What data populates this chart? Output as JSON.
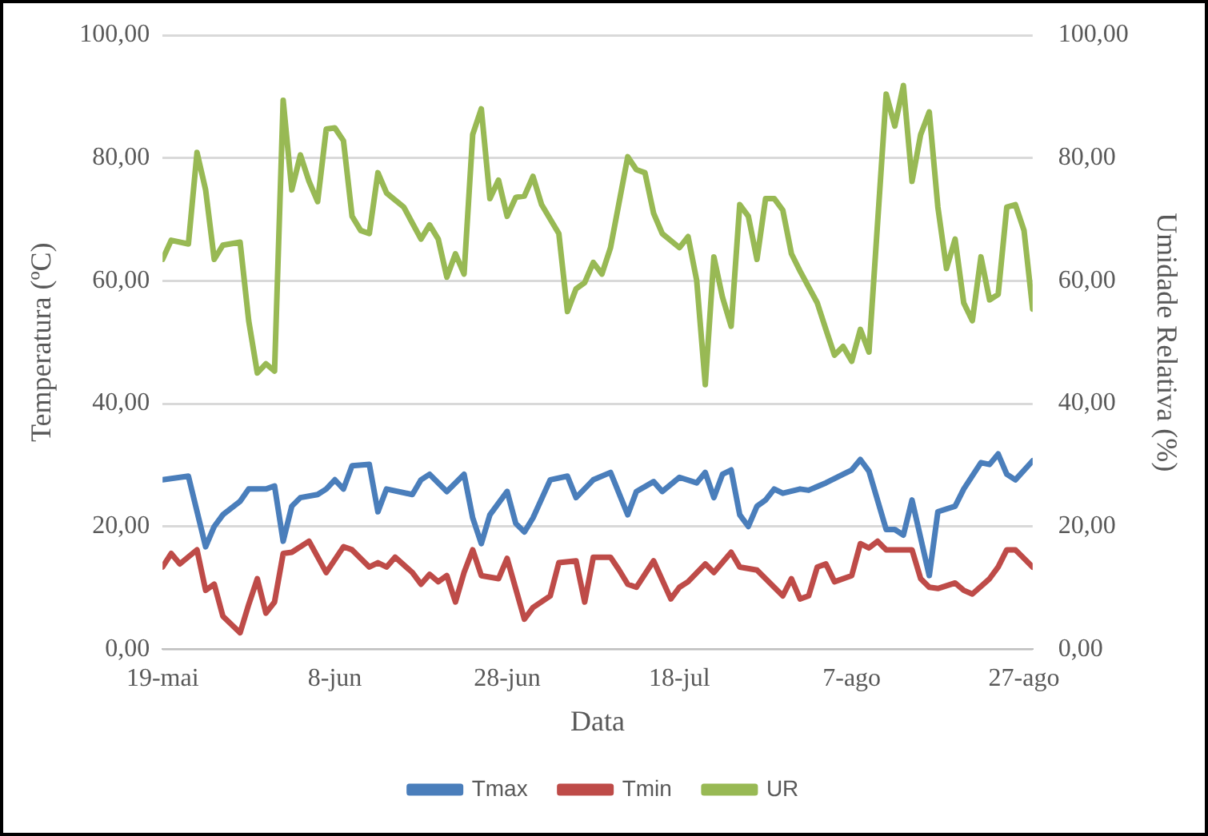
{
  "chart_data": {
    "type": "line",
    "xlabel": "Data",
    "ylabel": "Temperatura (ºC)",
    "y2label": "Umidade Relativa (%)",
    "xlim": [
      "--05-19",
      "--08-28"
    ],
    "xticks": [
      {
        "value": "--05-19",
        "label": "19-mai"
      },
      {
        "value": "--06-08",
        "label": "8-jun"
      },
      {
        "value": "--06-28",
        "label": "28-jun"
      },
      {
        "value": "--07-18",
        "label": "18-jul"
      },
      {
        "value": "--08-07",
        "label": "7-ago"
      },
      {
        "value": "--08-27",
        "label": "27-ago"
      }
    ],
    "ylim": [
      0,
      100
    ],
    "yticks": [
      {
        "value": 0,
        "label": "0,00"
      },
      {
        "value": 20,
        "label": "20,00"
      },
      {
        "value": 40,
        "label": "40,00"
      },
      {
        "value": 60,
        "label": "60,00"
      },
      {
        "value": 80,
        "label": "80,00"
      },
      {
        "value": 100,
        "label": "100,00"
      }
    ],
    "y2lim": [
      0,
      100
    ],
    "y2ticks": [
      {
        "value": 0,
        "label": "0,00"
      },
      {
        "value": 20,
        "label": "20,00"
      },
      {
        "value": 40,
        "label": "40,00"
      },
      {
        "value": 60,
        "label": "60,00"
      },
      {
        "value": 80,
        "label": "80,00"
      },
      {
        "value": 100,
        "label": "100,00"
      }
    ],
    "grid": "y",
    "legend": "bottom",
    "marker": "none",
    "line_style": "solid",
    "series": [
      {
        "name": "Tmax",
        "color": "#4a7ebb",
        "x": [
          "--05-19",
          "--05-22",
          "--05-24",
          "--05-25",
          "--05-26",
          "--05-28",
          "--05-29",
          "--05-31",
          "--06-01",
          "--06-02",
          "--06-03",
          "--06-04",
          "--06-06",
          "--06-07",
          "--06-08",
          "--06-09",
          "--06-10",
          "--06-12",
          "--06-13",
          "--06-14",
          "--06-17",
          "--06-18",
          "--06-19",
          "--06-20",
          "--06-21",
          "--06-23",
          "--06-24",
          "--06-25",
          "--06-26",
          "--06-28",
          "--06-29",
          "--06-30",
          "--07-01",
          "--07-03",
          "--07-05",
          "--07-06",
          "--07-08",
          "--07-10",
          "--07-12",
          "--07-13",
          "--07-15",
          "--07-16",
          "--07-18",
          "--07-20",
          "--07-21",
          "--07-22",
          "--07-23",
          "--07-24",
          "--07-25",
          "--07-26",
          "--07-27",
          "--07-28",
          "--07-29",
          "--07-30",
          "--08-01",
          "--08-02",
          "--08-04",
          "--08-06",
          "--08-07",
          "--08-08",
          "--08-09",
          "--08-11",
          "--08-12",
          "--08-13",
          "--08-14",
          "--08-16",
          "--08-17",
          "--08-19",
          "--08-20",
          "--08-22",
          "--08-23",
          "--08-24",
          "--08-25",
          "--08-26",
          "--08-28"
        ],
        "values": [
          27.6,
          28.2,
          16.7,
          20,
          21.9,
          24.1,
          26.1,
          26.1,
          26.6,
          17.6,
          23.3,
          24.7,
          25.2,
          26.1,
          27.6,
          26.1,
          29.9,
          30.1,
          22.4,
          26.1,
          25.2,
          27.6,
          28.5,
          27.1,
          25.7,
          28.5,
          21.4,
          17.2,
          21.9,
          25.7,
          20.5,
          19.1,
          21.4,
          27.6,
          28.2,
          24.7,
          27.6,
          28.8,
          21.9,
          25.7,
          27.3,
          25.7,
          28,
          27.1,
          28.8,
          24.7,
          28.5,
          29.2,
          21.9,
          20,
          23.3,
          24.3,
          26.1,
          25.4,
          26.1,
          25.9,
          27.1,
          28.5,
          29.2,
          30.9,
          29,
          19.5,
          19.5,
          18.6,
          24.3,
          12,
          22.4,
          23.3,
          26.1,
          30.4,
          30.1,
          31.8,
          28.5,
          27.6,
          30.7
        ]
      },
      {
        "name": "Tmin",
        "color": "#be4b48",
        "x": [
          "--05-19",
          "--05-20",
          "--05-21",
          "--05-23",
          "--05-24",
          "--05-25",
          "--05-26",
          "--05-28",
          "--05-29",
          "--05-30",
          "--05-31",
          "--06-01",
          "--06-02",
          "--06-03",
          "--06-05",
          "--06-07",
          "--06-09",
          "--06-10",
          "--06-12",
          "--06-13",
          "--06-14",
          "--06-15",
          "--06-17",
          "--06-18",
          "--06-19",
          "--06-20",
          "--06-21",
          "--06-22",
          "--06-23",
          "--06-24",
          "--06-25",
          "--06-27",
          "--06-28",
          "--06-30",
          "--07-01",
          "--07-03",
          "--07-04",
          "--07-06",
          "--07-07",
          "--07-08",
          "--07-10",
          "--07-11",
          "--07-12",
          "--07-13",
          "--07-15",
          "--07-17",
          "--07-18",
          "--07-19",
          "--07-21",
          "--07-22",
          "--07-24",
          "--07-25",
          "--07-27",
          "--07-28",
          "--07-30",
          "--07-31",
          "--08-01",
          "--08-02",
          "--08-03",
          "--08-04",
          "--08-05",
          "--08-07",
          "--08-08",
          "--08-09",
          "--08-10",
          "--08-11",
          "--08-14",
          "--08-15",
          "--08-16",
          "--08-17",
          "--08-19",
          "--08-20",
          "--08-21",
          "--08-23",
          "--08-24",
          "--08-25",
          "--08-26",
          "--08-28"
        ],
        "values": [
          13.4,
          15.6,
          13.9,
          16.2,
          9.6,
          10.6,
          5.4,
          2.7,
          7.3,
          11.5,
          5.9,
          7.7,
          15.6,
          15.8,
          17.6,
          12.5,
          16.7,
          16.2,
          13.4,
          14.1,
          13.4,
          15,
          12.5,
          10.6,
          12.2,
          11,
          12,
          7.7,
          12.5,
          16.2,
          12,
          11.5,
          14.8,
          4.9,
          6.8,
          8.7,
          14.1,
          14.4,
          7.7,
          15,
          15,
          12.9,
          10.6,
          10.1,
          14.4,
          8.2,
          10.1,
          11,
          13.9,
          12.5,
          15.8,
          13.4,
          12.9,
          11.5,
          8.7,
          11.5,
          8.2,
          8.7,
          13.4,
          13.9,
          11,
          12,
          17.2,
          16.5,
          17.6,
          16.2,
          16.2,
          11.5,
          10.1,
          9.9,
          10.8,
          9.6,
          9,
          11.5,
          13.4,
          16.2,
          16.2,
          13.4
        ]
      },
      {
        "name": "UR",
        "color": "#98b954",
        "axis": "y2",
        "x": [
          "--05-19",
          "--05-20",
          "--05-22",
          "--05-23",
          "--05-24",
          "--05-25",
          "--05-26",
          "--05-28",
          "--05-29",
          "--05-30",
          "--05-31",
          "--06-01",
          "--06-02",
          "--06-03",
          "--06-04",
          "--06-05",
          "--06-06",
          "--06-07",
          "--06-08",
          "--06-09",
          "--06-10",
          "--06-11",
          "--06-12",
          "--06-13",
          "--06-14",
          "--06-16",
          "--06-18",
          "--06-19",
          "--06-20",
          "--06-21",
          "--06-22",
          "--06-23",
          "--06-24",
          "--06-25",
          "--06-26",
          "--06-27",
          "--06-28",
          "--06-29",
          "--06-30",
          "--07-01",
          "--07-02",
          "--07-04",
          "--07-05",
          "--07-06",
          "--07-07",
          "--07-08",
          "--07-09",
          "--07-10",
          "--07-12",
          "--07-13",
          "--07-14",
          "--07-15",
          "--07-16",
          "--07-18",
          "--07-19",
          "--07-20",
          "--07-21",
          "--07-22",
          "--07-23",
          "--07-24",
          "--07-25",
          "--07-26",
          "--07-27",
          "--07-28",
          "--07-29",
          "--07-30",
          "--07-31",
          "--08-01",
          "--08-03",
          "--08-04",
          "--08-05",
          "--08-06",
          "--08-07",
          "--08-08",
          "--08-09",
          "--08-11",
          "--08-12",
          "--08-13",
          "--08-14",
          "--08-15",
          "--08-16",
          "--08-17",
          "--08-18",
          "--08-19",
          "--08-20",
          "--08-21",
          "--08-22",
          "--08-23",
          "--08-24",
          "--08-25",
          "--08-26",
          "--08-27",
          "--08-28"
        ],
        "values": [
          63.5,
          66.6,
          66,
          80.9,
          74.8,
          63.5,
          65.8,
          66.3,
          53.5,
          45,
          46.5,
          45.3,
          89.4,
          74.8,
          80.5,
          76.2,
          72.9,
          84.7,
          84.9,
          82.8,
          70.5,
          68.2,
          67.7,
          77.6,
          74.3,
          72,
          66.8,
          69.1,
          66.8,
          60.6,
          64.4,
          61.1,
          83.8,
          88,
          73.4,
          76.4,
          70.5,
          73.6,
          73.8,
          77,
          72.4,
          67.7,
          55,
          58.7,
          59.7,
          63,
          61.1,
          65.4,
          80.2,
          78.1,
          77.6,
          71,
          67.7,
          65.4,
          67.2,
          60.1,
          43.1,
          63.9,
          57.3,
          52.6,
          72.4,
          70.5,
          63.5,
          73.4,
          73.4,
          71.5,
          64.4,
          61.6,
          56.4,
          52.1,
          47.9,
          49.3,
          46.9,
          52.1,
          48.4,
          90.4,
          85.2,
          91.8,
          76.2,
          83.8,
          87.5,
          72,
          62,
          66.8,
          56.4,
          53.5,
          63.9,
          56.9,
          57.8,
          72,
          72.4,
          68.2,
          55.4
        ]
      }
    ]
  }
}
